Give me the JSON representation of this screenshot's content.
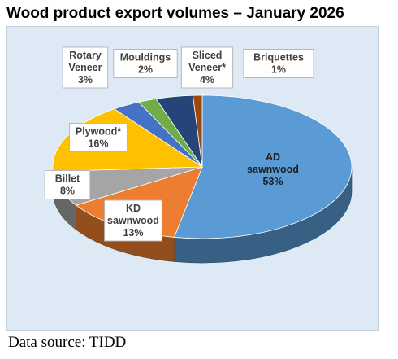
{
  "chart_data": {
    "type": "pie",
    "title": "Wood product export volumes – January 2026",
    "unit": "%",
    "slices": [
      {
        "label_lines": [
          "AD",
          "sawnwood"
        ],
        "value": 53,
        "value_label": "53%",
        "color": "#5b9bd5"
      },
      {
        "label_lines": [
          "KD",
          "sawnwood"
        ],
        "value": 13,
        "value_label": "13%",
        "color": "#ed7d31"
      },
      {
        "label_lines": [
          "Billet"
        ],
        "value": 8,
        "value_label": "8%",
        "color": "#a5a5a5"
      },
      {
        "label_lines": [
          "Plywood*"
        ],
        "value": 16,
        "value_label": "16%",
        "color": "#ffc000"
      },
      {
        "label_lines": [
          "Rotary",
          "Veneer"
        ],
        "value": 3,
        "value_label": "3%",
        "color": "#4472c4"
      },
      {
        "label_lines": [
          "Mouldings"
        ],
        "value": 2,
        "value_label": "2%",
        "color": "#70ad47"
      },
      {
        "label_lines": [
          "Sliced",
          "Veneer*"
        ],
        "value": 4,
        "value_label": "4%",
        "color": "#264478"
      },
      {
        "label_lines": [
          "Briquettes"
        ],
        "value": 1,
        "value_label": "1%",
        "color": "#9e480e"
      }
    ]
  },
  "footer": {
    "source": "Data source: TIDD"
  }
}
